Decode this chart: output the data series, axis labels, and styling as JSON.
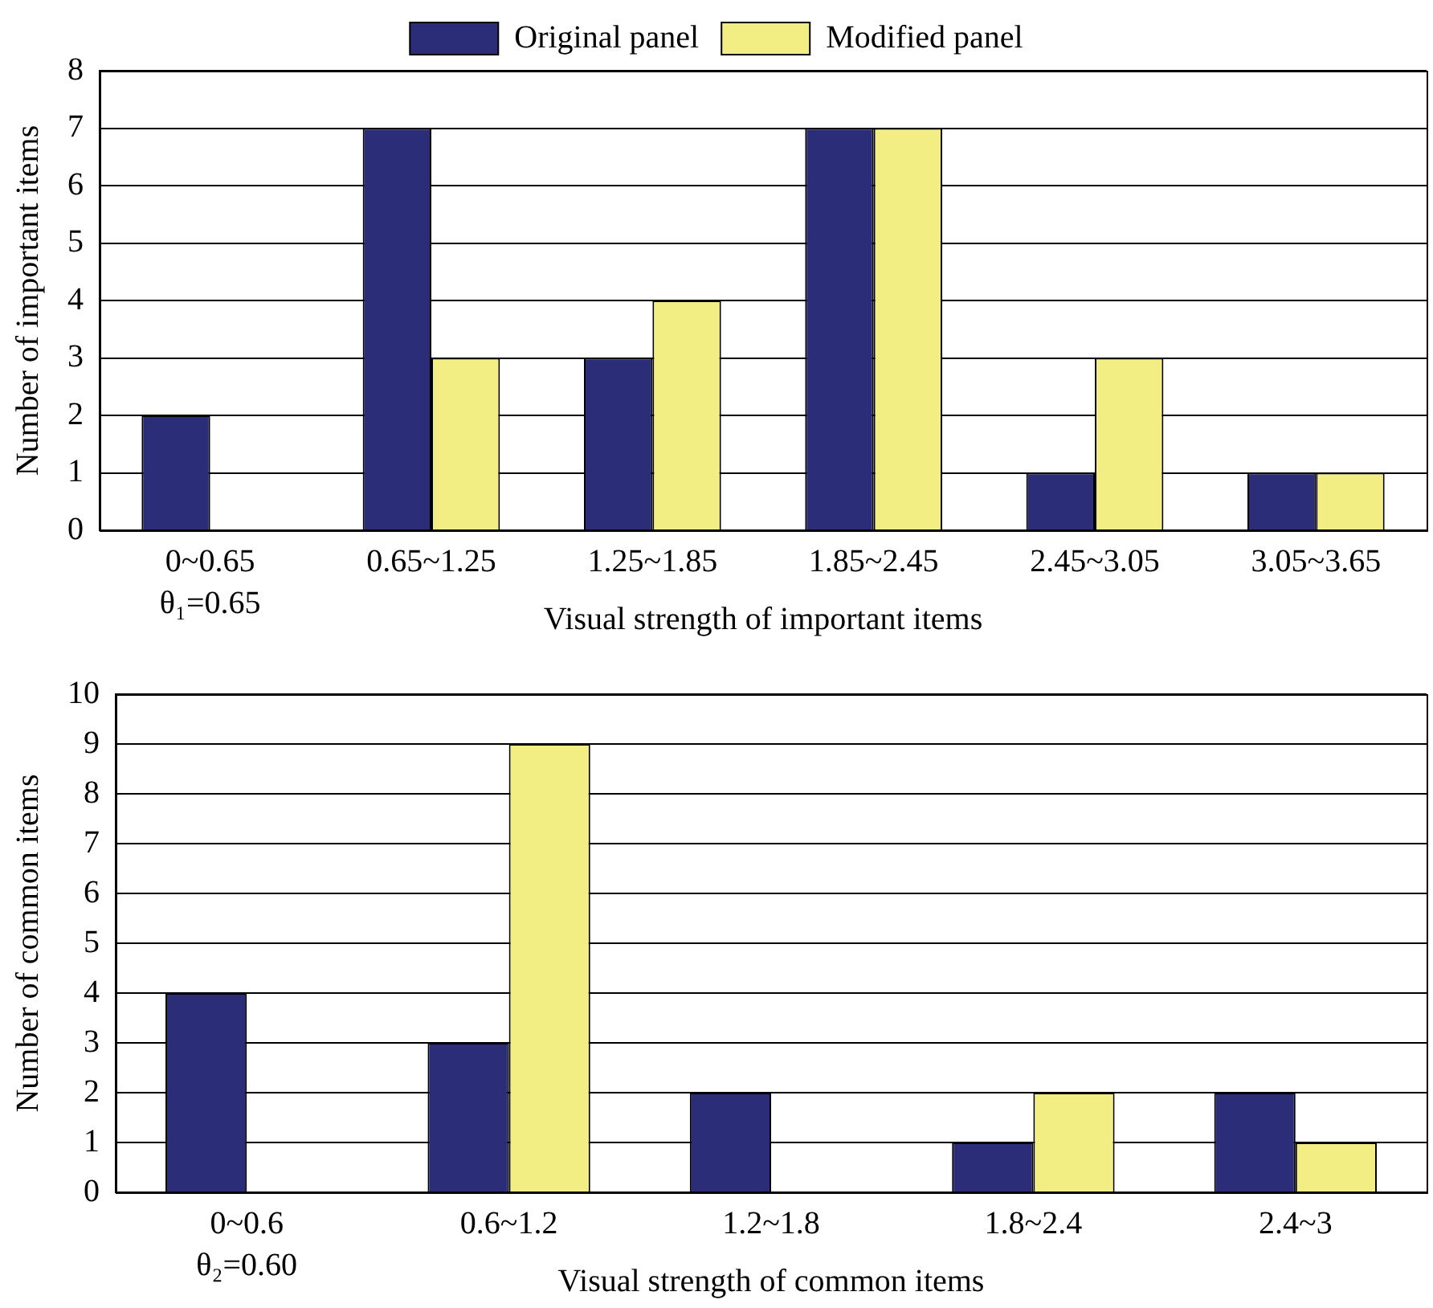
{
  "chart_data": [
    {
      "type": "bar",
      "categories": [
        "0~0.65",
        "0.65~1.25",
        "1.25~1.85",
        "1.85~2.45",
        "2.45~3.05",
        "3.05~3.65"
      ],
      "series": [
        {
          "name": "Original panel",
          "color": "#2b2d78",
          "values": [
            2,
            7,
            3,
            7,
            1,
            1
          ]
        },
        {
          "name": "Modified panel",
          "color": "#f2ee84",
          "values": [
            0,
            3,
            4,
            7,
            3,
            1
          ]
        }
      ],
      "ylim": [
        0,
        8
      ],
      "yticks": [
        0,
        1,
        2,
        3,
        4,
        5,
        6,
        7,
        8
      ],
      "ylabel": "Number of important items",
      "xlabel": "Visual strength of important items",
      "grid": "y",
      "legend": "top",
      "annotations": [
        "θ₁=0.65"
      ]
    },
    {
      "type": "bar",
      "categories": [
        "0~0.6",
        "0.6~1.2",
        "1.2~1.8",
        "1.8~2.4",
        "2.4~3"
      ],
      "series": [
        {
          "color": "#2b2d78",
          "values": [
            4,
            3,
            2,
            1,
            2
          ]
        },
        {
          "color": "#f2ee84",
          "values": [
            0,
            9,
            0,
            2,
            1
          ]
        }
      ],
      "ylim": [
        0,
        10
      ],
      "yticks": [
        0,
        1,
        2,
        3,
        4,
        5,
        6,
        7,
        8,
        9,
        10
      ],
      "ylabel": "Number of common items",
      "xlabel": "Visual strength of common items",
      "grid": "y",
      "annotations": [
        "θ₂=0.60"
      ]
    }
  ]
}
